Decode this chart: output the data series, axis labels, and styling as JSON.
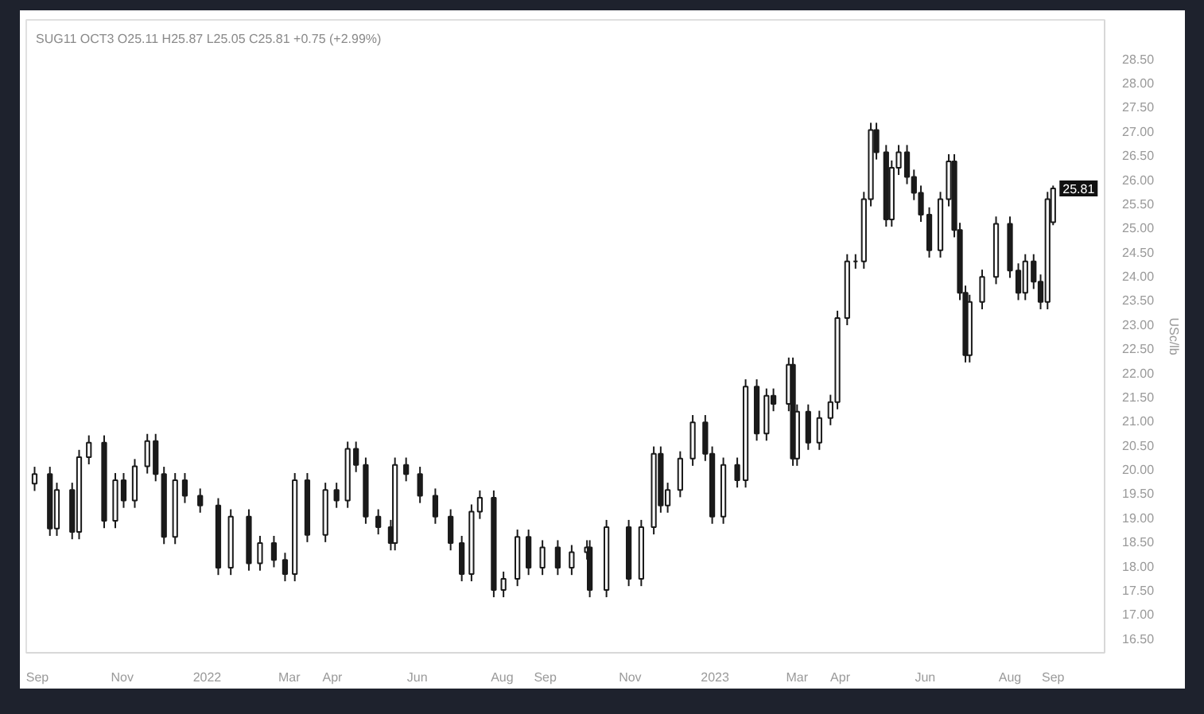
{
  "chart_data": {
    "type": "candlestick",
    "title": "SUG11 OCT3 O25.11 H25.87 L25.05 C25.81 +0.75 (+2.99%)",
    "ylabel": "USc/lb",
    "x": [
      "2021-08-30",
      "2021-09-10",
      "2021-09-15",
      "2021-09-26",
      "2021-10-01",
      "2021-10-08",
      "2021-10-19",
      "2021-10-27",
      "2021-11-02",
      "2021-11-10",
      "2021-11-19",
      "2021-11-25",
      "2021-12-01",
      "2021-12-09",
      "2021-12-16",
      "2021-12-27",
      "2022-01-09",
      "2022-01-18",
      "2022-01-31",
      "2022-02-08",
      "2022-02-18",
      "2022-02-26",
      "2022-03-05",
      "2022-03-14",
      "2022-03-27",
      "2022-04-04",
      "2022-04-12",
      "2022-04-18",
      "2022-04-25",
      "2022-05-04",
      "2022-05-13",
      "2022-05-16",
      "2022-05-24",
      "2022-06-03",
      "2022-06-14",
      "2022-06-25",
      "2022-07-03",
      "2022-07-10",
      "2022-07-16",
      "2022-07-26",
      "2022-08-02",
      "2022-08-12",
      "2022-08-20",
      "2022-08-30",
      "2022-09-10",
      "2022-09-20",
      "2022-10-01",
      "2022-10-03",
      "2022-10-15",
      "2022-10-31",
      "2022-11-09",
      "2022-11-18",
      "2022-11-23",
      "2022-11-28",
      "2022-12-07",
      "2022-12-16",
      "2022-12-25",
      "2022-12-30",
      "2023-01-07",
      "2023-01-17",
      "2023-01-23",
      "2023-01-31",
      "2023-02-07",
      "2023-02-12",
      "2023-02-23",
      "2023-02-26",
      "2023-03-01",
      "2023-03-09",
      "2023-03-17",
      "2023-03-25",
      "2023-03-30",
      "2023-04-06",
      "2023-04-12",
      "2023-04-18",
      "2023-04-23",
      "2023-04-27",
      "2023-05-04",
      "2023-05-08",
      "2023-05-13",
      "2023-05-19",
      "2023-05-24",
      "2023-05-29",
      "2023-06-04",
      "2023-06-12",
      "2023-06-18",
      "2023-06-22",
      "2023-06-26",
      "2023-06-30",
      "2023-07-03",
      "2023-07-12",
      "2023-07-22",
      "2023-08-01",
      "2023-08-07",
      "2023-08-12",
      "2023-08-18",
      "2023-08-23",
      "2023-08-28",
      "2023-09-01"
    ],
    "series": [
      {
        "color": "#1a1a1a",
        "ohlc": [
          [
            19.7,
            20.05,
            19.55,
            19.9
          ],
          [
            19.9,
            20.05,
            18.62,
            18.77
          ],
          [
            18.77,
            19.72,
            18.62,
            19.57
          ],
          [
            19.57,
            19.72,
            18.55,
            18.7
          ],
          [
            18.7,
            20.4,
            18.55,
            20.25
          ],
          [
            20.25,
            20.7,
            20.1,
            20.55
          ],
          [
            20.55,
            20.7,
            18.78,
            18.93
          ],
          [
            18.93,
            19.92,
            18.78,
            19.77
          ],
          [
            19.77,
            19.92,
            19.2,
            19.35
          ],
          [
            19.35,
            20.21,
            19.2,
            20.06
          ],
          [
            20.06,
            20.73,
            19.91,
            20.58
          ],
          [
            20.58,
            20.73,
            19.75,
            19.9
          ],
          [
            19.9,
            20.05,
            18.45,
            18.6
          ],
          [
            18.6,
            19.92,
            18.45,
            19.77
          ],
          [
            19.77,
            19.92,
            19.3,
            19.45
          ],
          [
            19.45,
            19.6,
            19.1,
            19.25
          ],
          [
            19.25,
            19.4,
            17.81,
            17.96
          ],
          [
            17.96,
            19.17,
            17.81,
            19.02
          ],
          [
            19.02,
            19.17,
            17.9,
            18.05
          ],
          [
            18.05,
            18.62,
            17.9,
            18.47
          ],
          [
            18.47,
            18.62,
            17.97,
            18.12
          ],
          [
            18.12,
            18.27,
            17.68,
            17.83
          ],
          [
            17.83,
            19.92,
            17.68,
            19.77
          ],
          [
            19.77,
            19.92,
            18.49,
            18.64
          ],
          [
            18.64,
            19.72,
            18.49,
            19.57
          ],
          [
            19.57,
            19.72,
            19.2,
            19.35
          ],
          [
            19.35,
            20.57,
            19.2,
            20.42
          ],
          [
            20.42,
            20.57,
            19.94,
            20.09
          ],
          [
            20.09,
            20.24,
            18.87,
            19.02
          ],
          [
            19.02,
            19.17,
            18.65,
            18.8
          ],
          [
            18.8,
            18.95,
            18.32,
            18.47
          ],
          [
            18.47,
            20.24,
            18.32,
            20.09
          ],
          [
            20.09,
            20.24,
            19.75,
            19.9
          ],
          [
            19.9,
            20.05,
            19.3,
            19.45
          ],
          [
            19.45,
            19.6,
            18.87,
            19.02
          ],
          [
            19.02,
            19.17,
            18.32,
            18.47
          ],
          [
            18.47,
            18.62,
            17.68,
            17.83
          ],
          [
            17.83,
            19.27,
            17.68,
            19.12
          ],
          [
            19.12,
            19.56,
            18.97,
            19.41
          ],
          [
            19.41,
            19.56,
            17.35,
            17.5
          ],
          [
            17.5,
            17.88,
            17.35,
            17.73
          ],
          [
            17.73,
            18.75,
            17.58,
            18.6
          ],
          [
            18.6,
            18.75,
            17.81,
            17.96
          ],
          [
            17.96,
            18.53,
            17.81,
            18.38
          ],
          [
            18.38,
            18.53,
            17.81,
            17.96
          ],
          [
            17.96,
            18.43,
            17.81,
            18.28
          ],
          [
            18.28,
            18.53,
            18.13,
            18.38
          ],
          [
            18.38,
            18.53,
            17.35,
            17.5
          ],
          [
            17.5,
            18.95,
            17.35,
            18.8
          ],
          [
            18.8,
            18.95,
            17.58,
            17.73
          ],
          [
            17.73,
            18.95,
            17.58,
            18.8
          ],
          [
            18.8,
            20.47,
            18.65,
            20.32
          ],
          [
            20.32,
            20.47,
            19.1,
            19.25
          ],
          [
            19.25,
            19.72,
            19.1,
            19.57
          ],
          [
            19.57,
            20.37,
            19.42,
            20.22
          ],
          [
            20.22,
            21.12,
            20.07,
            20.97
          ],
          [
            20.97,
            21.12,
            20.17,
            20.32
          ],
          [
            20.32,
            20.47,
            18.87,
            19.02
          ],
          [
            19.02,
            20.24,
            18.87,
            20.09
          ],
          [
            20.09,
            20.24,
            19.62,
            19.77
          ],
          [
            19.77,
            21.86,
            19.62,
            21.71
          ],
          [
            21.71,
            21.86,
            20.59,
            20.74
          ],
          [
            20.74,
            21.67,
            20.59,
            21.52
          ],
          [
            21.52,
            21.67,
            21.2,
            21.35
          ],
          [
            21.35,
            22.31,
            21.2,
            22.16
          ],
          [
            22.16,
            22.31,
            20.07,
            20.22
          ],
          [
            20.22,
            21.34,
            20.07,
            21.19
          ],
          [
            21.19,
            21.34,
            20.4,
            20.55
          ],
          [
            20.55,
            21.21,
            20.4,
            21.06
          ],
          [
            21.06,
            21.54,
            20.91,
            21.39
          ],
          [
            21.39,
            23.28,
            21.24,
            23.13
          ],
          [
            23.13,
            24.45,
            22.98,
            24.3
          ],
          [
            24.3,
            24.45,
            24.15,
            24.3
          ],
          [
            24.3,
            25.74,
            24.15,
            25.59
          ],
          [
            25.59,
            27.17,
            25.44,
            27.02
          ],
          [
            27.02,
            27.17,
            26.41,
            26.56
          ],
          [
            26.56,
            26.71,
            25.02,
            25.17
          ],
          [
            25.17,
            26.39,
            25.02,
            26.24
          ],
          [
            26.24,
            26.71,
            26.09,
            26.56
          ],
          [
            26.56,
            26.71,
            25.9,
            26.05
          ],
          [
            26.05,
            26.2,
            25.57,
            25.72
          ],
          [
            25.72,
            25.87,
            25.12,
            25.27
          ],
          [
            25.27,
            25.42,
            24.38,
            24.53
          ],
          [
            24.53,
            25.74,
            24.38,
            25.59
          ],
          [
            25.59,
            26.52,
            25.44,
            26.37
          ],
          [
            26.37,
            26.52,
            24.8,
            24.95
          ],
          [
            24.95,
            25.1,
            23.5,
            23.65
          ],
          [
            23.65,
            23.8,
            22.21,
            22.36
          ],
          [
            22.36,
            23.61,
            22.21,
            23.46
          ],
          [
            23.46,
            24.13,
            23.31,
            23.98
          ],
          [
            23.98,
            25.23,
            23.83,
            25.08
          ],
          [
            25.08,
            25.23,
            23.96,
            24.11
          ],
          [
            24.11,
            24.26,
            23.5,
            23.65
          ],
          [
            23.65,
            24.45,
            23.5,
            24.3
          ],
          [
            24.3,
            24.45,
            23.73,
            23.88
          ],
          [
            23.88,
            24.03,
            23.31,
            23.46
          ],
          [
            23.46,
            25.74,
            23.31,
            25.59
          ],
          [
            25.11,
            25.87,
            25.05,
            25.81
          ]
        ]
      }
    ],
    "xlim": [
      "2021-08-24",
      "2023-10-08"
    ],
    "xticks": [
      {
        "value": "2021-09-01",
        "label": "Sep"
      },
      {
        "value": "2021-11-01",
        "label": "Nov"
      },
      {
        "value": "2022-01-01",
        "label": "2022"
      },
      {
        "value": "2022-03-01",
        "label": "Mar"
      },
      {
        "value": "2022-04-01",
        "label": "Apr"
      },
      {
        "value": "2022-06-01",
        "label": "Jun"
      },
      {
        "value": "2022-08-01",
        "label": "Aug"
      },
      {
        "value": "2022-09-01",
        "label": "Sep"
      },
      {
        "value": "2022-11-01",
        "label": "Nov"
      },
      {
        "value": "2023-01-01",
        "label": "2023"
      },
      {
        "value": "2023-03-01",
        "label": "Mar"
      },
      {
        "value": "2023-04-01",
        "label": "Apr"
      },
      {
        "value": "2023-06-01",
        "label": "Jun"
      },
      {
        "value": "2023-08-01",
        "label": "Aug"
      },
      {
        "value": "2023-09-01",
        "label": "Sep"
      }
    ],
    "ylim": [
      16.2,
      29.3
    ],
    "yticks": [
      {
        "value": 16.5,
        "label": "16.50"
      },
      {
        "value": 17,
        "label": "17.00"
      },
      {
        "value": 17.5,
        "label": "17.50"
      },
      {
        "value": 18,
        "label": "18.00"
      },
      {
        "value": 18.5,
        "label": "18.50"
      },
      {
        "value": 19,
        "label": "19.00"
      },
      {
        "value": 19.5,
        "label": "19.50"
      },
      {
        "value": 20,
        "label": "20.00"
      },
      {
        "value": 20.5,
        "label": "20.50"
      },
      {
        "value": 21,
        "label": "21.00"
      },
      {
        "value": 21.5,
        "label": "21.50"
      },
      {
        "value": 22,
        "label": "22.00"
      },
      {
        "value": 22.5,
        "label": "22.50"
      },
      {
        "value": 23,
        "label": "23.00"
      },
      {
        "value": 23.5,
        "label": "23.50"
      },
      {
        "value": 24,
        "label": "24.00"
      },
      {
        "value": 24.5,
        "label": "24.50"
      },
      {
        "value": 25,
        "label": "25.00"
      },
      {
        "value": 25.5,
        "label": "25.50"
      },
      {
        "value": 26,
        "label": "26.00"
      },
      {
        "value": 26.5,
        "label": "26.50"
      },
      {
        "value": 27,
        "label": "27.00"
      },
      {
        "value": 27.5,
        "label": "27.50"
      },
      {
        "value": 28,
        "label": "28.00"
      },
      {
        "value": 28.5,
        "label": "28.50"
      }
    ],
    "annotations": [
      {
        "text": "25.81",
        "x": "2023-09-01",
        "y": 25.81
      }
    ],
    "grid": false
  }
}
